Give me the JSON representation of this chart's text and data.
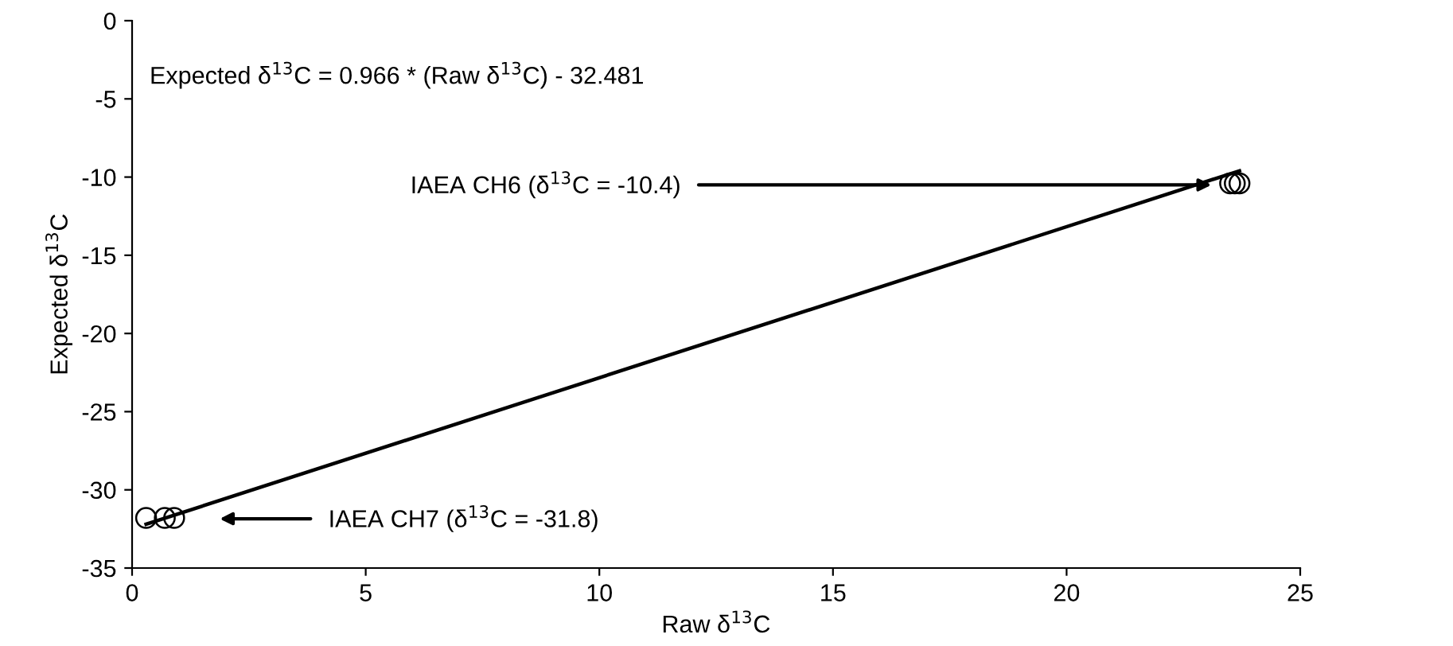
{
  "chart_data": {
    "type": "scatter",
    "xlabel": "Raw δ$^{13}$C",
    "ylabel": "Expected δ$^{13}$C",
    "series": [
      {
        "color": "#000000",
        "marker": "circle",
        "x": [
          0.3,
          0.7,
          0.9,
          23.5,
          23.6,
          23.7
        ],
        "values": [
          -31.8,
          -31.8,
          -31.8,
          -10.4,
          -10.4,
          -10.4
        ]
      },
      {
        "type": "line",
        "color": "#000000",
        "marker": "none",
        "x": [
          0.3,
          23.7
        ],
        "values": [
          -32.2,
          -9.6
        ]
      }
    ],
    "annotations": [
      "Expected δ$^{13}$C = 0.966 * (Raw δ$^{13}$C) - 32.481",
      {
        "text": "IAEA CH6 (δ$^{13}$C = -10.4)",
        "x": 23.1,
        "y": -10.5
      },
      "IAEA CH7 (δ$^{13}$C = -31.8)"
    ],
    "xlim": [
      0,
      25
    ],
    "xticks": [
      0,
      5,
      10,
      15,
      20,
      25
    ],
    "ylim": [
      -35,
      0
    ],
    "yticks": [
      -35,
      -30,
      -25,
      -20,
      -15,
      -10,
      -5,
      0
    ],
    "grid": false,
    "legend": false
  }
}
